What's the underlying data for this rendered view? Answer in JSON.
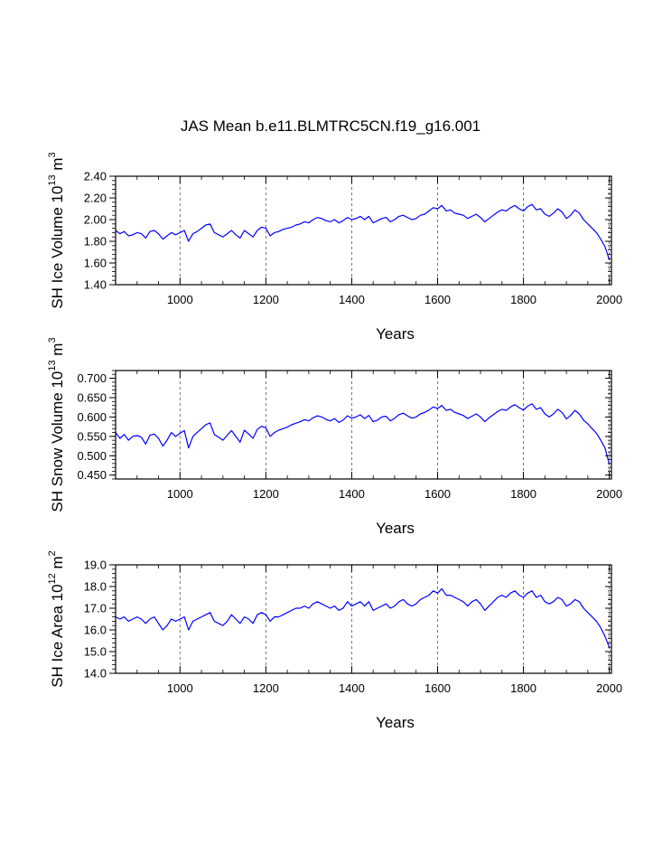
{
  "figure": {
    "title": "JAS Mean b.e11.BLMTRC5CN.f19_g16.001"
  },
  "colors": {
    "series": "#0000ff",
    "axis": "#000000",
    "grid": "#555555"
  },
  "chart_data": [
    {
      "type": "line",
      "title": "",
      "xlabel": "Years",
      "ylabel": "SH Ice Volume 10",
      "ylabel_exp": "13",
      "ylabel_unit": " m",
      "ylabel_unit_exp": "3",
      "xlim": [
        850,
        2005
      ],
      "ylim": [
        1.4,
        2.4
      ],
      "xticks": [
        1000,
        1200,
        1400,
        1600,
        1800,
        2000
      ],
      "xtick_labels": [
        "1000",
        "1200",
        "1400",
        "1600",
        "1800",
        "2000"
      ],
      "yticks": [
        1.4,
        1.6,
        1.8,
        2.0,
        2.2,
        2.4
      ],
      "ytick_labels": [
        "1.40",
        "1.60",
        "1.80",
        "2.00",
        "2.20",
        "2.40"
      ],
      "grid": "vertical dashed at major x ticks",
      "series": [
        {
          "name": "SH Ice Volume",
          "step": 10,
          "x_start": 850,
          "values": [
            1.9,
            1.87,
            1.89,
            1.85,
            1.86,
            1.88,
            1.87,
            1.83,
            1.89,
            1.9,
            1.87,
            1.82,
            1.85,
            1.88,
            1.86,
            1.88,
            1.9,
            1.8,
            1.87,
            1.89,
            1.92,
            1.95,
            1.96,
            1.88,
            1.86,
            1.84,
            1.87,
            1.9,
            1.86,
            1.83,
            1.9,
            1.87,
            1.84,
            1.9,
            1.93,
            1.92,
            1.85,
            1.88,
            1.89,
            1.91,
            1.92,
            1.93,
            1.95,
            1.96,
            1.98,
            1.97,
            2.0,
            2.02,
            2.01,
            1.99,
            1.98,
            2.0,
            1.97,
            1.99,
            2.02,
            2.0,
            2.01,
            2.03,
            2.0,
            2.03,
            1.97,
            1.99,
            2.01,
            2.02,
            1.98,
            2.0,
            2.03,
            2.04,
            2.02,
            2.0,
            2.01,
            2.04,
            2.05,
            2.08,
            2.11,
            2.1,
            2.13,
            2.08,
            2.09,
            2.06,
            2.05,
            2.04,
            2.01,
            2.03,
            2.05,
            2.02,
            1.98,
            2.01,
            2.04,
            2.07,
            2.09,
            2.08,
            2.11,
            2.13,
            2.1,
            2.08,
            2.12,
            2.14,
            2.09,
            2.1,
            2.05,
            2.03,
            2.06,
            2.1,
            2.07,
            2.01,
            2.04,
            2.09,
            2.06,
            2.0,
            1.96,
            1.92,
            1.88,
            1.82,
            1.75,
            1.63
          ]
        }
      ]
    },
    {
      "type": "line",
      "title": "",
      "xlabel": "Years",
      "ylabel": "SH Snow Volume 10",
      "ylabel_exp": "13",
      "ylabel_unit": " m",
      "ylabel_unit_exp": "3",
      "xlim": [
        850,
        2005
      ],
      "ylim": [
        0.44,
        0.72
      ],
      "xticks": [
        1000,
        1200,
        1400,
        1600,
        1800,
        2000
      ],
      "xtick_labels": [
        "1000",
        "1200",
        "1400",
        "1600",
        "1800",
        "2000"
      ],
      "yticks": [
        0.45,
        0.5,
        0.55,
        0.6,
        0.65,
        0.7
      ],
      "ytick_labels": [
        "0.450",
        "0.500",
        "0.550",
        "0.600",
        "0.650",
        "0.700"
      ],
      "grid": "vertical dashed at major x ticks",
      "series": [
        {
          "name": "SH Snow Volume",
          "step": 10,
          "x_start": 850,
          "values": [
            0.56,
            0.545,
            0.555,
            0.54,
            0.55,
            0.552,
            0.548,
            0.53,
            0.553,
            0.556,
            0.545,
            0.525,
            0.54,
            0.56,
            0.55,
            0.558,
            0.565,
            0.52,
            0.55,
            0.56,
            0.57,
            0.58,
            0.585,
            0.555,
            0.548,
            0.54,
            0.553,
            0.565,
            0.55,
            0.535,
            0.566,
            0.556,
            0.545,
            0.568,
            0.576,
            0.572,
            0.55,
            0.56,
            0.566,
            0.57,
            0.574,
            0.58,
            0.584,
            0.588,
            0.593,
            0.59,
            0.598,
            0.603,
            0.6,
            0.594,
            0.59,
            0.596,
            0.586,
            0.592,
            0.603,
            0.597,
            0.6,
            0.606,
            0.596,
            0.604,
            0.588,
            0.592,
            0.6,
            0.602,
            0.59,
            0.597,
            0.606,
            0.61,
            0.603,
            0.597,
            0.6,
            0.608,
            0.612,
            0.618,
            0.626,
            0.622,
            0.63,
            0.617,
            0.62,
            0.612,
            0.608,
            0.604,
            0.596,
            0.602,
            0.608,
            0.6,
            0.588,
            0.598,
            0.606,
            0.614,
            0.62,
            0.617,
            0.626,
            0.632,
            0.624,
            0.618,
            0.628,
            0.634,
            0.62,
            0.624,
            0.608,
            0.6,
            0.608,
            0.62,
            0.612,
            0.595,
            0.604,
            0.617,
            0.608,
            0.592,
            0.582,
            0.57,
            0.558,
            0.54,
            0.52,
            0.478
          ]
        }
      ]
    },
    {
      "type": "line",
      "title": "",
      "xlabel": "Years",
      "ylabel": "SH Ice Area 10",
      "ylabel_exp": "12",
      "ylabel_unit": " m",
      "ylabel_unit_exp": "2",
      "xlim": [
        850,
        2005
      ],
      "ylim": [
        14.0,
        19.0
      ],
      "xticks": [
        1000,
        1200,
        1400,
        1600,
        1800,
        2000
      ],
      "xtick_labels": [
        "1000",
        "1200",
        "1400",
        "1600",
        "1800",
        "2000"
      ],
      "yticks": [
        14.0,
        15.0,
        16.0,
        17.0,
        18.0,
        19.0
      ],
      "ytick_labels": [
        "14.0",
        "15.0",
        "16.0",
        "17.0",
        "18.0",
        "19.0"
      ],
      "grid": "vertical dashed at major x ticks",
      "series": [
        {
          "name": "SH Ice Area",
          "step": 10,
          "x_start": 850,
          "values": [
            16.6,
            16.5,
            16.6,
            16.4,
            16.5,
            16.6,
            16.5,
            16.3,
            16.5,
            16.6,
            16.3,
            16.0,
            16.2,
            16.5,
            16.4,
            16.5,
            16.6,
            16.0,
            16.4,
            16.5,
            16.6,
            16.7,
            16.8,
            16.4,
            16.3,
            16.2,
            16.4,
            16.7,
            16.5,
            16.3,
            16.6,
            16.5,
            16.3,
            16.7,
            16.8,
            16.7,
            16.4,
            16.6,
            16.6,
            16.7,
            16.8,
            16.9,
            17.0,
            17.0,
            17.1,
            17.0,
            17.2,
            17.3,
            17.2,
            17.1,
            17.0,
            17.1,
            16.9,
            17.0,
            17.3,
            17.1,
            17.2,
            17.3,
            17.1,
            17.3,
            16.9,
            17.0,
            17.1,
            17.2,
            17.0,
            17.1,
            17.3,
            17.4,
            17.2,
            17.1,
            17.2,
            17.4,
            17.5,
            17.6,
            17.8,
            17.7,
            17.9,
            17.6,
            17.6,
            17.5,
            17.4,
            17.3,
            17.1,
            17.3,
            17.4,
            17.2,
            16.9,
            17.1,
            17.3,
            17.5,
            17.6,
            17.5,
            17.7,
            17.8,
            17.6,
            17.5,
            17.7,
            17.8,
            17.5,
            17.6,
            17.3,
            17.2,
            17.3,
            17.5,
            17.4,
            17.1,
            17.2,
            17.4,
            17.3,
            17.0,
            16.8,
            16.6,
            16.4,
            16.1,
            15.7,
            15.2
          ]
        }
      ]
    }
  ]
}
